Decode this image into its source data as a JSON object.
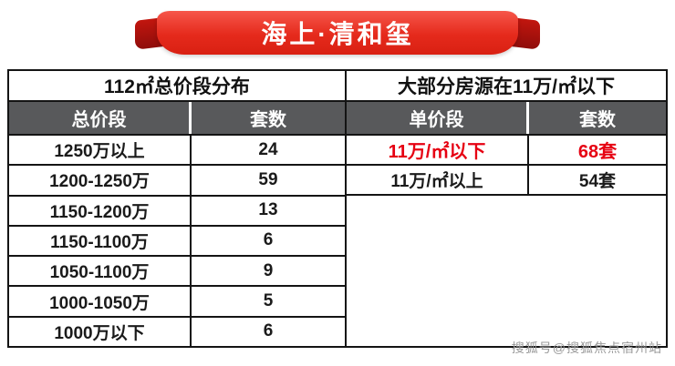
{
  "banner": {
    "title": "海上·清和玺"
  },
  "colors": {
    "ribbon_red": "#e52a1c",
    "ribbon_end_dark_red": "#a11209",
    "column_header_bg": "#58595b",
    "highlight_red": "#e60012",
    "grid_line": "#141414"
  },
  "chart_data": [
    {
      "type": "table",
      "title": "112㎡总价段分布",
      "columns": [
        "总价段",
        "套数"
      ],
      "rows": [
        [
          "1250万以上",
          "24"
        ],
        [
          "1200-1250万",
          "59"
        ],
        [
          "1150-1200万",
          "13"
        ],
        [
          "1150-1100万",
          "6"
        ],
        [
          "1050-1100万",
          "9"
        ],
        [
          "1000-1050万",
          "5"
        ],
        [
          "1000万以下",
          "6"
        ]
      ]
    },
    {
      "type": "table",
      "title": "大部分房源在11万/㎡以下",
      "columns": [
        "单价段",
        "套数"
      ],
      "rows": [
        [
          "11万/㎡以下",
          "68套"
        ],
        [
          "11万/㎡以上",
          "54套"
        ]
      ],
      "highlighted_row_index": 0
    }
  ],
  "watermark": {
    "text": "搜狐号@搜狐焦点宿州站"
  }
}
